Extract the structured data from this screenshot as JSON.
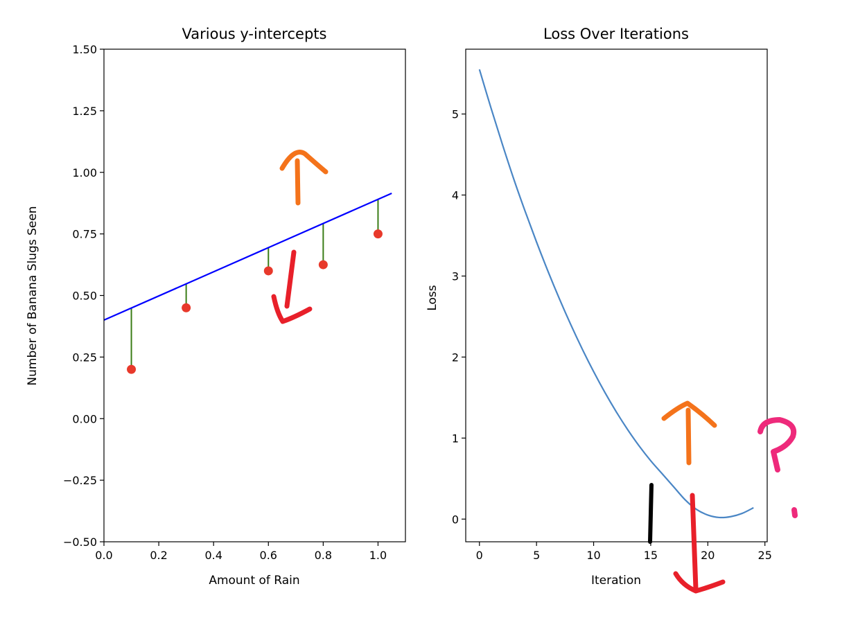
{
  "chart_data": [
    {
      "type": "scatter",
      "title": "Various y-intercepts",
      "xlabel": "Amount of Rain",
      "ylabel": "Number of Banana Slugs Seen",
      "xlim": [
        0.0,
        1.1
      ],
      "ylim": [
        -0.5,
        1.5
      ],
      "xticks": [
        0.0,
        0.2,
        0.4,
        0.6,
        0.8,
        1.0
      ],
      "xtick_labels": [
        "0.0",
        "0.2",
        "0.4",
        "0.6",
        "0.8",
        "1.0"
      ],
      "yticks": [
        -0.5,
        -0.25,
        0.0,
        0.25,
        0.5,
        0.75,
        1.0,
        1.25,
        1.5
      ],
      "ytick_labels": [
        "−0.50",
        "−0.25",
        "0.00",
        "0.25",
        "0.50",
        "0.75",
        "1.00",
        "1.25",
        "1.50"
      ],
      "grid": false,
      "points": [
        {
          "x": 0.1,
          "y": 0.2
        },
        {
          "x": 0.3,
          "y": 0.45
        },
        {
          "x": 0.6,
          "y": 0.6
        },
        {
          "x": 0.8,
          "y": 0.625
        },
        {
          "x": 1.0,
          "y": 0.75
        }
      ],
      "fit_line": {
        "x0": 0.0,
        "y0": 0.4,
        "x1": 1.05,
        "y1": 0.915
      },
      "colors": {
        "points": "#e8392b",
        "line": "#0000ff",
        "residuals": "#3a7d17"
      }
    },
    {
      "type": "line",
      "title": "Loss Over Iterations",
      "xlabel": "Iteration",
      "ylabel": "Loss",
      "xlim": [
        -1.2,
        25.2
      ],
      "ylim": [
        -0.28,
        5.8
      ],
      "xticks": [
        0,
        5,
        10,
        15,
        20,
        25
      ],
      "xtick_labels": [
        "0",
        "5",
        "10",
        "15",
        "20",
        "25"
      ],
      "yticks": [
        0,
        1,
        2,
        3,
        4,
        5
      ],
      "ytick_labels": [
        "0",
        "1",
        "2",
        "3",
        "4",
        "5"
      ],
      "grid": false,
      "series": [
        {
          "x": [
            0,
            1,
            2,
            3,
            4,
            5,
            6,
            7,
            8,
            9,
            10,
            11,
            12,
            13,
            14,
            15,
            16,
            17,
            18,
            19,
            20,
            21,
            22,
            23,
            24
          ],
          "values": [
            5.55,
            5.08,
            4.63,
            4.2,
            3.8,
            3.42,
            3.06,
            2.72,
            2.4,
            2.1,
            1.82,
            1.56,
            1.32,
            1.1,
            0.9,
            0.72,
            0.56,
            0.4,
            0.24,
            0.12,
            0.05,
            0.02,
            0.03,
            0.07,
            0.14
          ]
        }
      ],
      "colors": {
        "line": "#4a86c5"
      }
    }
  ],
  "annotations": {
    "question_mark": "?",
    "colors": {
      "up_arrow": "#f4731b",
      "down_arrow": "#e8202a",
      "question": "#ee2a7b",
      "marker_bar": "#000000"
    }
  }
}
